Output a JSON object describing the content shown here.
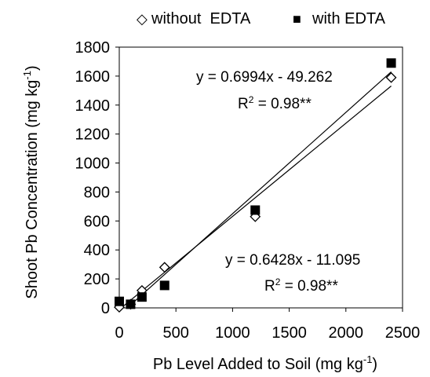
{
  "chart_data": {
    "type": "scatter",
    "xlabel": "Pb Level Added to Soil (mg kg",
    "xlabel_sup": "-1",
    "xlabel_tail": ")",
    "ylabel": "Shoot Pb Concentration (mg kg",
    "ylabel_sup": "-1",
    "ylabel_tail": ")",
    "xlim": [
      0,
      2500
    ],
    "ylim": [
      0,
      1800
    ],
    "xticks": [
      "0",
      "500",
      "1000",
      "1500",
      "2000",
      "2500"
    ],
    "yticks": [
      "0",
      "200",
      "400",
      "600",
      "800",
      "1000",
      "1200",
      "1400",
      "1600",
      "1800"
    ],
    "legend_position": "top",
    "series": [
      {
        "name": "without  EDTA",
        "legend_symbol": "◇",
        "marker": "diamond-open",
        "points": [
          [
            0,
            5
          ],
          [
            100,
            25
          ],
          [
            200,
            120
          ],
          [
            400,
            280
          ],
          [
            1200,
            630
          ],
          [
            2400,
            1590
          ]
        ],
        "fit": {
          "slope": 0.6428,
          "intercept": -11.095
        },
        "equation": "y = 0.6428x - 11.095",
        "r2_base": "R",
        "r2_sup": "2",
        "r2_value": " = 0.98**"
      },
      {
        "name": "with EDTA",
        "legend_symbol": "■",
        "marker": "square-filled",
        "points": [
          [
            0,
            45
          ],
          [
            100,
            25
          ],
          [
            200,
            75
          ],
          [
            400,
            155
          ],
          [
            1200,
            675
          ],
          [
            2400,
            1690
          ]
        ],
        "fit": {
          "slope": 0.6994,
          "intercept": -49.262
        },
        "equation": "y = 0.6994x - 49.262",
        "r2_base": "R",
        "r2_sup": "2",
        "r2_value": " = 0.98**"
      }
    ]
  }
}
